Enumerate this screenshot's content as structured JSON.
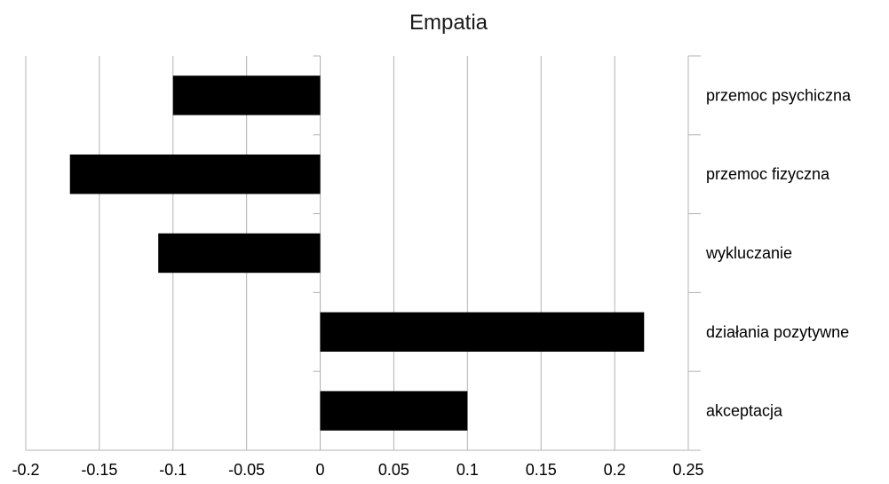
{
  "chart_data": {
    "type": "bar",
    "orientation": "horizontal",
    "title": "Empatia",
    "xlabel": "",
    "ylabel": "",
    "categories": [
      "przemoc psychiczna",
      "przemoc fizyczna",
      "wykluczanie",
      "działania pozytywne",
      "akceptacja"
    ],
    "values": [
      -0.1,
      -0.17,
      -0.11,
      0.22,
      0.1
    ],
    "xlim": [
      -0.2,
      0.25
    ],
    "xticks": [
      "-0.2",
      "-0.15",
      "-0.1",
      "-0.05",
      "0",
      "0.05",
      "0.1",
      "0.15",
      "0.2",
      "0.25"
    ],
    "grid": true,
    "legend": "none",
    "bar_color": "#000000",
    "grid_color": "#b3b3b3"
  }
}
